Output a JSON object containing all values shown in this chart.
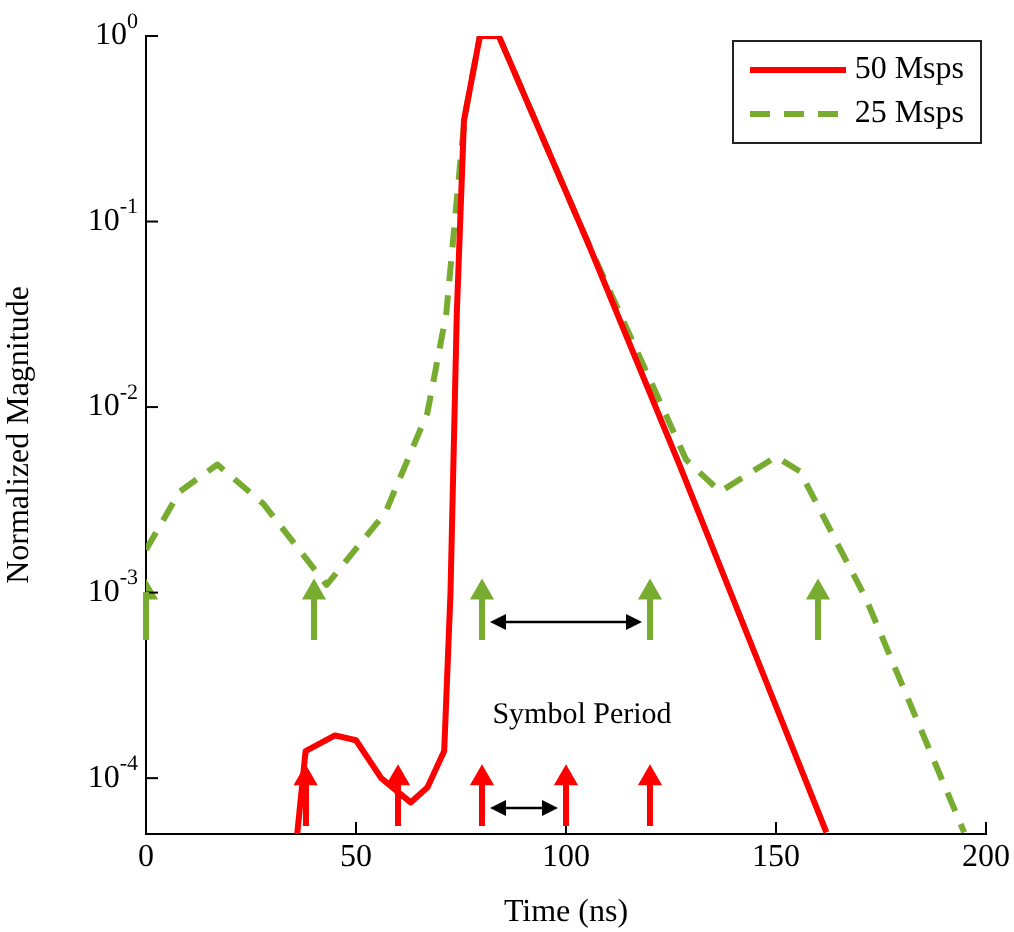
{
  "chart_data": {
    "type": "line",
    "xlabel": "Time (ns)",
    "ylabel": "Normalized Magnitude",
    "log": "y",
    "legend": "top right",
    "xlim": [
      0,
      200
    ],
    "xticks": [
      0,
      50,
      100,
      150,
      200
    ],
    "ylim": [
      5e-05,
      1
    ],
    "yticks": [
      {
        "value": 0.0001,
        "label": "10$^{-4}$"
      },
      {
        "value": 0.001,
        "label": "10$^{-3}$"
      },
      {
        "value": 0.01,
        "label": "10$^{-2}$"
      },
      {
        "value": 0.1,
        "label": "10$^{-1}$"
      },
      {
        "value": 1,
        "label": "10$^{0}$"
      }
    ],
    "annotations": [
      "Symbol Period"
    ],
    "series": [
      {
        "name": "50 Msps",
        "color": "#ff0000",
        "line_style": "solid",
        "x": [
          36,
          38,
          45,
          50,
          56,
          63,
          67,
          71,
          72.5,
          74,
          75.7,
          79.5,
          84,
          105,
          127,
          162
        ],
        "values": [
          5e-05,
          0.00014,
          0.00017,
          0.00016,
          0.0001,
          7.4e-05,
          8.9e-05,
          0.00014,
          0.001,
          0.032,
          0.35,
          1,
          1,
          0.079,
          0.0049,
          5.1e-05
        ]
      },
      {
        "name": "25 Msps",
        "color": "#77ac30",
        "line_style": "dashed",
        "x": [
          0,
          8,
          17,
          28,
          43,
          57,
          67,
          71.5,
          75,
          76,
          79.5,
          84,
          105,
          128.6,
          136.7,
          150,
          155.7,
          171.4,
          194.8
        ],
        "values": [
          0.0017,
          0.0035,
          0.0049,
          0.003,
          0.0011,
          0.0027,
          0.0093,
          0.032,
          0.23,
          0.38,
          1,
          1,
          0.079,
          0.0052,
          0.0035,
          0.0054,
          0.0045,
          0.00093,
          5.1e-05
        ]
      },
      {
        "type": "lollipop",
        "color": "#77ac30",
        "marker": "triangle",
        "x": [
          0,
          40,
          80,
          120,
          160
        ],
        "values": [
          0.001,
          0.001,
          0.001,
          0.001,
          0.001
        ]
      },
      {
        "type": "lollipop",
        "color": "#ff0000",
        "marker": "triangle",
        "x": [
          38,
          60,
          80,
          100,
          120
        ],
        "values": [
          0.0001,
          0.0001,
          0.0001,
          0.0001,
          0.0001
        ]
      }
    ]
  }
}
